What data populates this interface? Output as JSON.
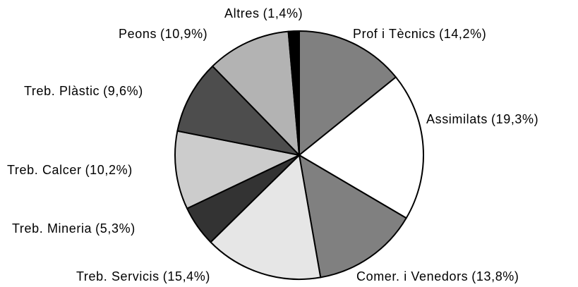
{
  "chart_data": {
    "type": "pie",
    "categories": [
      "Prof i Tècnics",
      "Assimilats",
      "Comer. i Venedors",
      "Treb. Servicis",
      "Treb. Mineria",
      "Treb. Calcer",
      "Treb. Plàstic",
      "Peons",
      "Altres"
    ],
    "values": [
      14.2,
      19.3,
      13.8,
      15.4,
      5.3,
      10.2,
      9.6,
      10.9,
      1.4
    ],
    "value_labels": [
      "(14,2%)",
      "(19,3%)",
      "(13,8%)",
      "(15,4%)",
      "(5,3%)",
      "(10,2%)",
      "(9,6%)",
      "(10,9%)",
      "(1,4%)"
    ],
    "colors": [
      "#808080",
      "#ffffff",
      "#808080",
      "#e6e6e6",
      "#333333",
      "#cccccc",
      "#4d4d4d",
      "#b3b3b3",
      "#000000"
    ]
  }
}
